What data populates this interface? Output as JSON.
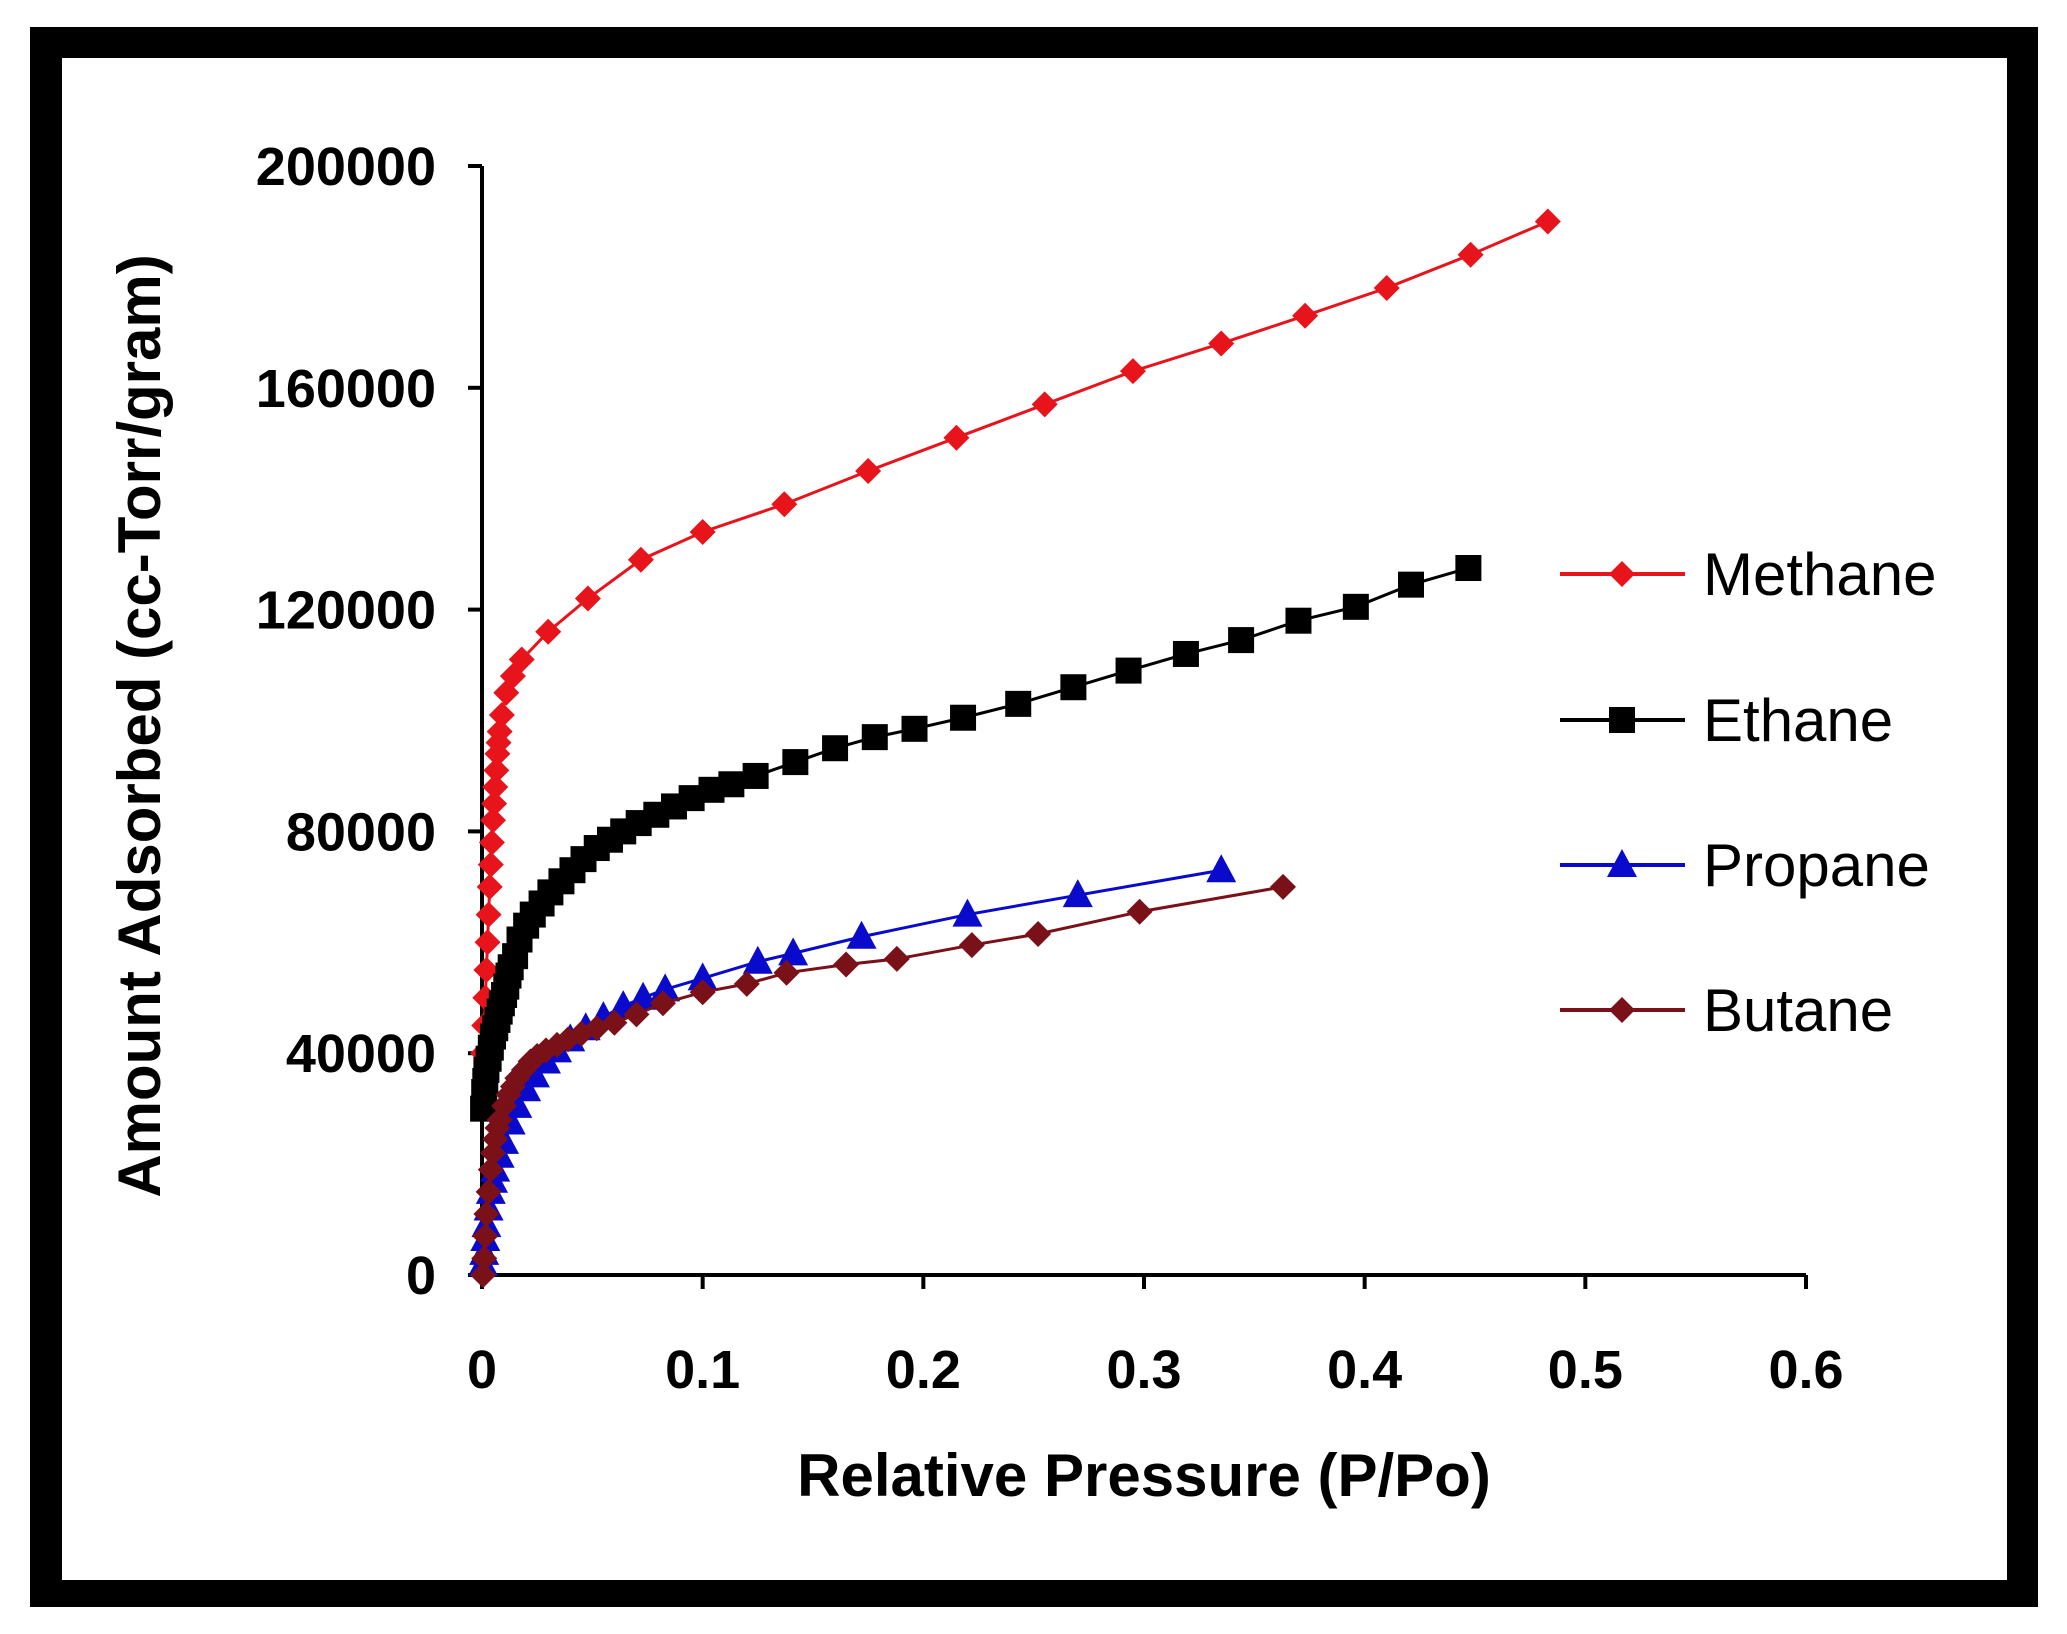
{
  "chart_data": {
    "type": "line",
    "title": "",
    "xlabel": "Relative Pressure (P/Po)",
    "ylabel": "Amount Adsorbed (cc-Torr/gram)",
    "xlim": [
      0,
      0.6
    ],
    "ylim": [
      0,
      200000
    ],
    "xticks": [
      0,
      0.1,
      0.2,
      0.3,
      0.4,
      0.5,
      0.6
    ],
    "xtick_labels": [
      "0",
      "0.1",
      "0.2",
      "0.3",
      "0.4",
      "0.5",
      "0.6"
    ],
    "yticks": [
      0,
      40000,
      80000,
      120000,
      160000,
      200000
    ],
    "ytick_labels": [
      "0",
      "40000",
      "80000",
      "120000",
      "160000",
      "200000"
    ],
    "legend_position": "right",
    "series": [
      {
        "name": "Methane",
        "color": "#e8141c",
        "marker": "diamond",
        "x": [
          0.0005,
          0.001,
          0.0015,
          0.002,
          0.0025,
          0.003,
          0.0035,
          0.004,
          0.0045,
          0.005,
          0.0055,
          0.006,
          0.0065,
          0.007,
          0.0075,
          0.008,
          0.009,
          0.011,
          0.014,
          0.018,
          0.03,
          0.048,
          0.072,
          0.1,
          0.137,
          0.175,
          0.215,
          0.255,
          0.295,
          0.335,
          0.373,
          0.41,
          0.448,
          0.483
        ],
        "y": [
          40000,
          45000,
          50000,
          55000,
          60000,
          65000,
          70000,
          74000,
          78000,
          82000,
          85000,
          88000,
          91000,
          94000,
          96000,
          98000,
          101000,
          105000,
          108000,
          111000,
          116000,
          122000,
          129000,
          134000,
          139000,
          145000,
          151000,
          157000,
          163000,
          168000,
          173000,
          178000,
          184000,
          190000
        ]
      },
      {
        "name": "Ethane",
        "color": "#000000",
        "marker": "square",
        "x": [
          0.0005,
          0.001,
          0.0015,
          0.002,
          0.003,
          0.004,
          0.005,
          0.006,
          0.007,
          0.008,
          0.009,
          0.01,
          0.011,
          0.012,
          0.013,
          0.015,
          0.017,
          0.02,
          0.023,
          0.027,
          0.031,
          0.036,
          0.041,
          0.046,
          0.052,
          0.058,
          0.064,
          0.071,
          0.079,
          0.087,
          0.095,
          0.104,
          0.113,
          0.124,
          0.142,
          0.16,
          0.178,
          0.196,
          0.218,
          0.243,
          0.268,
          0.293,
          0.319,
          0.344,
          0.37,
          0.396,
          0.421,
          0.447
        ],
        "y": [
          30000,
          33000,
          35000,
          37000,
          39000,
          41000,
          43000,
          44500,
          46000,
          47500,
          49000,
          50500,
          52000,
          54000,
          55500,
          57500,
          60500,
          63000,
          65000,
          67000,
          69000,
          71000,
          73000,
          75000,
          77000,
          78500,
          80000,
          81500,
          83000,
          84500,
          86000,
          87500,
          88500,
          90000,
          92500,
          95000,
          97000,
          98500,
          100500,
          103000,
          106000,
          109000,
          112000,
          114500,
          118000,
          120500,
          124500,
          127500
        ]
      },
      {
        "name": "Propane",
        "color": "#0a0acd",
        "marker": "triangle",
        "x": [
          0.0005,
          0.001,
          0.0015,
          0.002,
          0.003,
          0.004,
          0.005,
          0.006,
          0.008,
          0.01,
          0.013,
          0.016,
          0.02,
          0.024,
          0.029,
          0.034,
          0.04,
          0.047,
          0.055,
          0.064,
          0.073,
          0.083,
          0.1,
          0.125,
          0.141,
          0.172,
          0.22,
          0.27,
          0.335
        ],
        "y": [
          2000,
          4000,
          6500,
          9000,
          12000,
          15000,
          17000,
          19000,
          21500,
          24000,
          27500,
          30500,
          33500,
          36000,
          38500,
          40500,
          42500,
          44500,
          46500,
          48500,
          50000,
          51500,
          53500,
          56500,
          58000,
          61000,
          65000,
          68500,
          73000
        ]
      },
      {
        "name": "Butane",
        "color": "#7a1018",
        "marker": "diamond",
        "x": [
          0.0005,
          0.001,
          0.0015,
          0.002,
          0.003,
          0.004,
          0.005,
          0.006,
          0.007,
          0.008,
          0.01,
          0.012,
          0.014,
          0.016,
          0.019,
          0.022,
          0.025,
          0.029,
          0.034,
          0.039,
          0.045,
          0.052,
          0.06,
          0.07,
          0.082,
          0.1,
          0.12,
          0.138,
          0.165,
          0.188,
          0.222,
          0.252,
          0.298,
          0.363
        ],
        "y": [
          0,
          3000,
          7000,
          11000,
          15000,
          19000,
          22000,
          24500,
          26500,
          28000,
          30500,
          32500,
          34000,
          35500,
          37000,
          38500,
          39500,
          40500,
          41500,
          42500,
          43500,
          44500,
          45500,
          47000,
          49000,
          51000,
          52500,
          54500,
          56000,
          57000,
          59500,
          61500,
          65500,
          70000
        ]
      }
    ]
  }
}
